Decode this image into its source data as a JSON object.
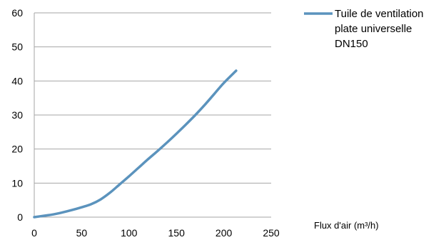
{
  "chart_data": {
    "type": "line",
    "title": "",
    "xlabel": "Flux d'air (m³/h)",
    "ylabel": "",
    "xlim": [
      0,
      250
    ],
    "ylim": [
      0,
      60
    ],
    "x_ticks": [
      "0",
      "50",
      "100",
      "150",
      "200",
      "250"
    ],
    "y_ticks": [
      "0",
      "10",
      "20",
      "30",
      "40",
      "50",
      "60"
    ],
    "grid": "horizontal",
    "legend_position": "top-right",
    "series": [
      {
        "name": "Tuile de ventilation plate universelle DN150",
        "legend_lines": [
          "Tuile de ventilation",
          "plate universelle",
          "DN150"
        ],
        "color": "#5b93bd",
        "x": [
          0,
          10,
          20,
          30,
          40,
          50,
          60,
          70,
          80,
          90,
          100,
          110,
          120,
          130,
          140,
          150,
          160,
          170,
          180,
          190,
          200,
          213
        ],
        "y": [
          0,
          0.4,
          0.8,
          1.4,
          2.1,
          2.9,
          3.8,
          5.2,
          7.2,
          9.6,
          12.0,
          14.5,
          17.0,
          19.4,
          21.9,
          24.5,
          27.2,
          30.0,
          33.0,
          36.2,
          39.4,
          43.0
        ]
      }
    ]
  }
}
